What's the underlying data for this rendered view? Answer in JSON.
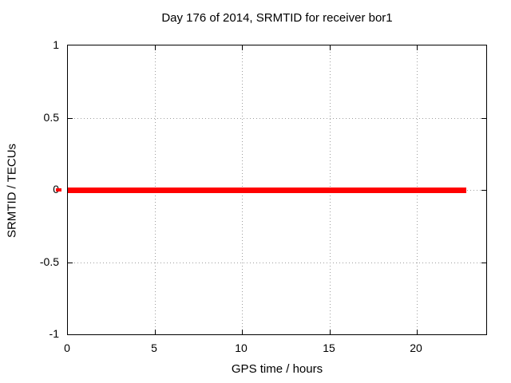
{
  "chart_data": {
    "type": "line",
    "title": "Day 176 of 2014, SRMTID for receiver bor1",
    "xlabel": "GPS time / hours",
    "ylabel": "SRMTID / TECUs",
    "xlim": [
      0,
      24
    ],
    "ylim": [
      -1,
      1
    ],
    "grid": true,
    "legend_position": "none",
    "x_ticks": [
      {
        "value": 0,
        "label": "0"
      },
      {
        "value": 5,
        "label": "5"
      },
      {
        "value": 10,
        "label": "10"
      },
      {
        "value": 15,
        "label": "15"
      },
      {
        "value": 20,
        "label": "20"
      }
    ],
    "y_ticks": [
      {
        "value": 1,
        "label": "1"
      },
      {
        "value": 0.5,
        "label": "0.5"
      },
      {
        "value": 0,
        "label": "0"
      },
      {
        "value": -0.5,
        "label": "-0.5"
      },
      {
        "value": -1,
        "label": "-1"
      }
    ],
    "x_gridlines": [
      5,
      10,
      15,
      20
    ],
    "y_gridlines": [
      0.5,
      0,
      -0.5
    ],
    "series": [
      {
        "name": "SRMTID",
        "color": "#ff0000",
        "points": [
          {
            "x": 0,
            "y": 0
          },
          {
            "x": 22.85,
            "y": 0
          }
        ]
      }
    ],
    "colors": {
      "axis": "#000000",
      "grid": "#9e9e9e",
      "background": "#ffffff"
    }
  }
}
